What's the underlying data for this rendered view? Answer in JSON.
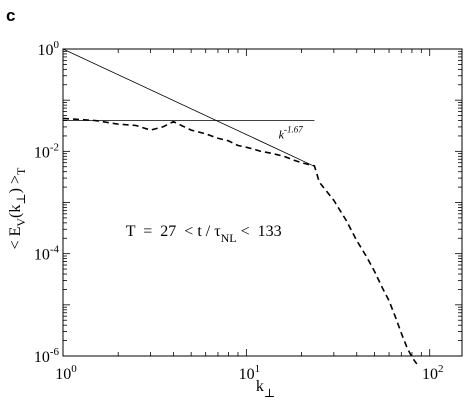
{
  "panel_label": "c",
  "chart_data": {
    "type": "line",
    "xscale": "log",
    "yscale": "log",
    "xlim": [
      1,
      150
    ],
    "ylim": [
      1e-06,
      1
    ],
    "x_ticks": [
      {
        "value": 1,
        "base": "10",
        "exp": "0"
      },
      {
        "value": 10,
        "base": "10",
        "exp": "1"
      },
      {
        "value": 100,
        "base": "10",
        "exp": "2"
      }
    ],
    "y_ticks": [
      {
        "value": 1,
        "base": "10",
        "exp": "0"
      },
      {
        "value": 0.01,
        "base": "10",
        "exp": "-2"
      },
      {
        "value": 0.0001,
        "base": "10",
        "exp": "-4"
      },
      {
        "value": 1e-06,
        "base": "10",
        "exp": "-6"
      }
    ],
    "xlabel": {
      "main": "k",
      "sub": "⊥"
    },
    "ylabel": {
      "open": "< E",
      "sub1": "V",
      "mid": "(k",
      "sub2": "⊥",
      "close": ") >",
      "sub3": "T"
    },
    "grid": false,
    "series": [
      {
        "style": "dashed",
        "x": [
          1,
          1.5,
          2,
          2.5,
          3,
          3.5,
          4,
          5,
          6,
          7,
          8,
          9,
          10,
          11,
          12,
          14,
          16,
          18,
          20,
          22,
          23.5,
          25,
          30,
          35,
          40,
          45,
          50,
          55,
          60,
          65,
          70,
          75,
          80,
          85
        ],
        "y": [
          0.044,
          0.04,
          0.034,
          0.032,
          0.026,
          0.03,
          0.038,
          0.026,
          0.022,
          0.018,
          0.016,
          0.013,
          0.012,
          0.011,
          0.01,
          0.009,
          0.008,
          0.0068,
          0.006,
          0.0055,
          0.0052,
          0.0025,
          0.0011,
          0.00045,
          0.00018,
          9e-05,
          4.5e-05,
          2.2e-05,
          1.2e-05,
          5.8e-06,
          2.8e-06,
          1.5e-06,
          9.5e-07,
          7e-07
        ]
      },
      {
        "style": "solid-thin",
        "x": [
          1,
          23.5
        ],
        "y": [
          1,
          0.0051
        ]
      },
      {
        "style": "solid-thin",
        "x": [
          1,
          23.5
        ],
        "y": [
          0.04,
          0.04
        ]
      }
    ],
    "annotations": [
      {
        "id": "slope",
        "base": "k",
        "exp": "-1.67",
        "x": 15,
        "y": 0.018
      },
      {
        "id": "time",
        "text_before": "T  =  27  < t / τ",
        "sub": "NL",
        "text_after": " <  133",
        "x": 2.2,
        "y": 0.00022
      }
    ]
  }
}
